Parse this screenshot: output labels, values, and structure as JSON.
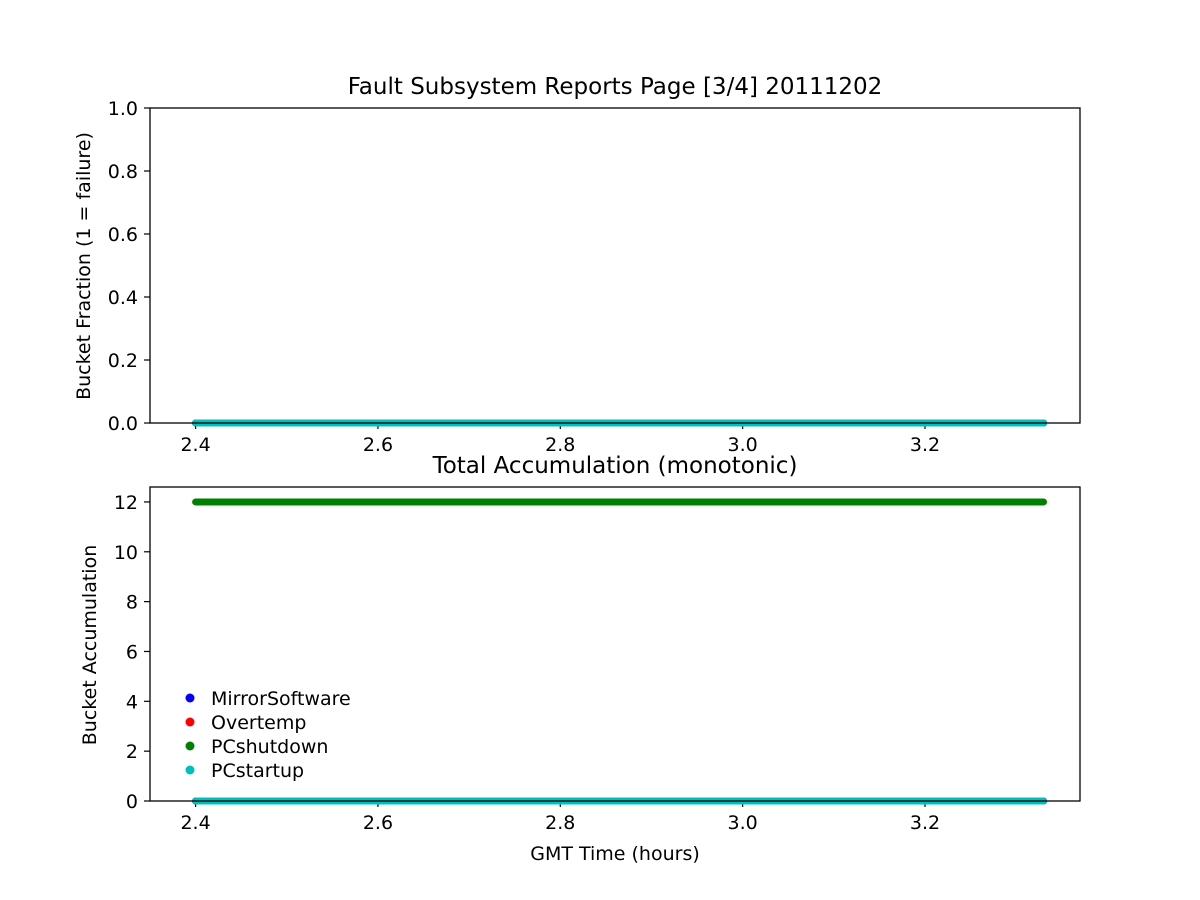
{
  "chart_data": [
    {
      "type": "scatter",
      "title": "Fault Subsystem Reports Page [3/4] 20111202",
      "xlabel": "",
      "ylabel": "Bucket Fraction (1 = failure)",
      "xlim": [
        2.35,
        3.37
      ],
      "ylim": [
        0.0,
        1.0
      ],
      "xticks": [
        "2.4",
        "2.6",
        "2.8",
        "3.0",
        "3.2"
      ],
      "yticks": [
        "0.0",
        "0.2",
        "0.4",
        "0.6",
        "0.8",
        "1.0"
      ],
      "x_range": [
        2.4,
        3.33
      ],
      "series": [
        {
          "name": "MirrorSoftware",
          "color": "#0000ff",
          "value": 0.0
        },
        {
          "name": "Overtemp",
          "color": "#ff0000",
          "value": 0.0
        },
        {
          "name": "PCshutdown",
          "color": "#008000",
          "value": 0.0
        },
        {
          "name": "PCstartup",
          "color": "#00bfbf",
          "value": 0.0
        }
      ]
    },
    {
      "type": "scatter",
      "title": "Total Accumulation (monotonic)",
      "xlabel": "GMT Time (hours)",
      "ylabel": "Bucket Accumulation",
      "xlim": [
        2.35,
        3.37
      ],
      "ylim": [
        0,
        12.6
      ],
      "xticks": [
        "2.4",
        "2.6",
        "2.8",
        "3.0",
        "3.2"
      ],
      "yticks": [
        "0",
        "2",
        "4",
        "6",
        "8",
        "10",
        "12"
      ],
      "x_range": [
        2.4,
        3.33
      ],
      "legend": "lower-left",
      "series": [
        {
          "name": "MirrorSoftware",
          "color": "#0000ff",
          "value": 0
        },
        {
          "name": "Overtemp",
          "color": "#ff0000",
          "value": 0
        },
        {
          "name": "PCshutdown",
          "color": "#008000",
          "value": 12
        },
        {
          "name": "PCstartup",
          "color": "#00bfbf",
          "value": 0
        }
      ]
    }
  ]
}
